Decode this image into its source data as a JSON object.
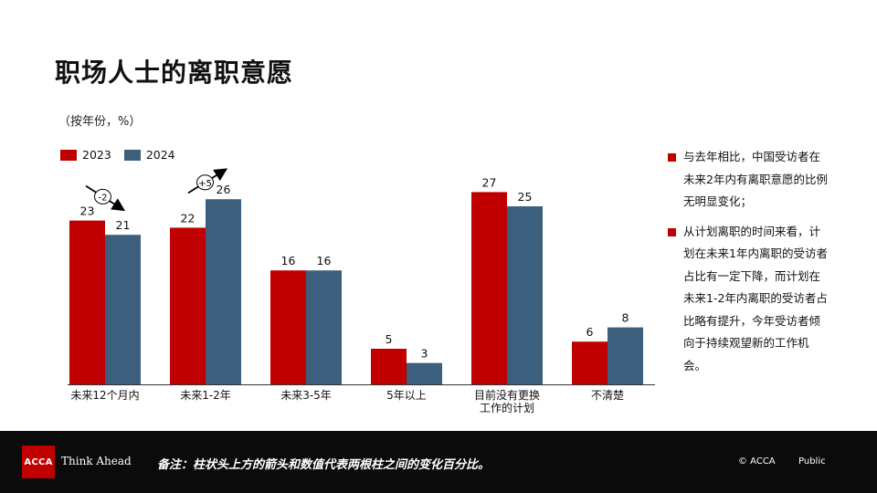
{
  "header": {
    "title": "职场人士的离职意愿",
    "unit": "（按年份，%）"
  },
  "legend": {
    "items": [
      {
        "label": "2023",
        "color": "#c00000"
      },
      {
        "label": "2024",
        "color": "#3b5f7d"
      }
    ]
  },
  "chart_data": {
    "type": "bar",
    "categories": [
      "未来12个月内",
      "未来1-2年",
      "未来3-5年",
      "5年以上",
      "目前没有更换\n工作的计划",
      "不清楚"
    ],
    "series": [
      {
        "name": "2023",
        "values": [
          23,
          22,
          16,
          5,
          27,
          6
        ],
        "color": "#c00000"
      },
      {
        "name": "2024",
        "values": [
          21,
          26,
          16,
          3,
          25,
          8
        ],
        "color": "#3b5f7d"
      }
    ],
    "ylim": [
      0,
      30
    ],
    "grid": false,
    "legend_position": "top-left",
    "annotations": [
      {
        "category_index": 0,
        "label": "-2",
        "direction": "down"
      },
      {
        "category_index": 1,
        "label": "+5",
        "direction": "up"
      }
    ]
  },
  "bullets": [
    "与去年相比，中国受访者在未来2年内有离职意愿的比例无明显变化；",
    "从计划离职的时间来看，计划在未来1年内离职的受访者占比有一定下降，而计划在未来1-2年内离职的受访者占比略有提升，今年受访者倾向于持续观望新的工作机会。"
  ],
  "footer": {
    "logo_text": "ACCA",
    "logo_color": "#c00000",
    "tagline": "Think Ahead",
    "note": "备注：柱状头上方的箭头和数值代表两根柱之间的变化百分比。",
    "copyright": "© ACCA",
    "classification": "Public"
  }
}
